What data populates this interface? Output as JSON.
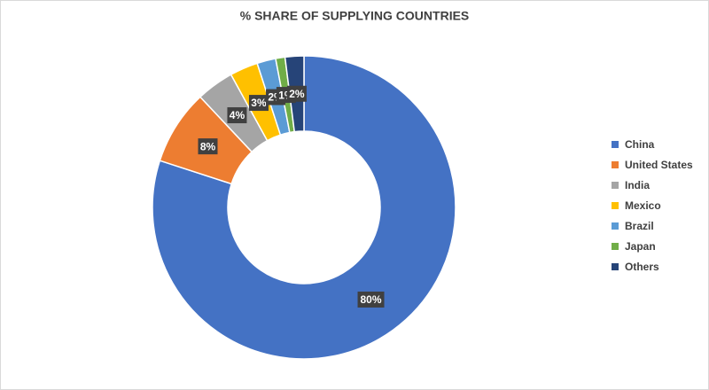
{
  "chart_data": {
    "type": "donut",
    "title": "% SHARE OF SUPPLYING COUNTRIES",
    "categories": [
      "China",
      "United States",
      "India",
      "Mexico",
      "Brazil",
      "Japan",
      "Others"
    ],
    "values": [
      80,
      8,
      4,
      3,
      2,
      1,
      2
    ],
    "value_labels": [
      "80%",
      "8%",
      "4%",
      "3%",
      "2%",
      "1%",
      "2%"
    ],
    "colors": [
      "#4472c4",
      "#ed7d31",
      "#a5a5a5",
      "#ffc000",
      "#5b9bd5",
      "#70ad47",
      "#264478"
    ],
    "legend": "right"
  }
}
